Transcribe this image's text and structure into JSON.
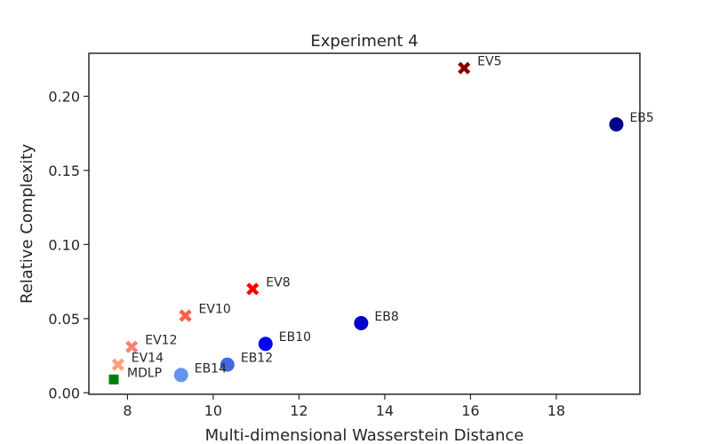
{
  "chart_data": {
    "type": "scatter",
    "title": "Experiment 4",
    "xlabel": "Multi-dimensional Wasserstein Distance",
    "ylabel": "Relative Complexity",
    "xlim": [
      7.1,
      19.95
    ],
    "ylim": [
      -0.001,
      0.229
    ],
    "xticks": [
      8,
      10,
      12,
      14,
      16,
      18
    ],
    "yticks": [
      0.0,
      0.05,
      0.1,
      0.15,
      0.2
    ],
    "ytick_labels": [
      "0.00",
      "0.05",
      "0.10",
      "0.15",
      "0.20"
    ],
    "grid": false,
    "points": [
      {
        "label": "EV5",
        "x": 15.85,
        "y": 0.219,
        "marker": "x",
        "color": "#8b0000"
      },
      {
        "label": "EB5",
        "x": 19.4,
        "y": 0.181,
        "marker": "circle",
        "color": "#00008b"
      },
      {
        "label": "EV8",
        "x": 10.92,
        "y": 0.07,
        "marker": "x",
        "color": "#ff0000"
      },
      {
        "label": "EB8",
        "x": 13.45,
        "y": 0.047,
        "marker": "circle",
        "color": "#0000cd"
      },
      {
        "label": "EV10",
        "x": 9.35,
        "y": 0.052,
        "marker": "x",
        "color": "#ff6347"
      },
      {
        "label": "EB10",
        "x": 11.22,
        "y": 0.033,
        "marker": "circle",
        "color": "#0000ff"
      },
      {
        "label": "EV12",
        "x": 8.1,
        "y": 0.031,
        "marker": "x",
        "color": "#fa8072"
      },
      {
        "label": "EB12",
        "x": 10.33,
        "y": 0.019,
        "marker": "circle",
        "color": "#4169e1"
      },
      {
        "label": "EV14",
        "x": 7.78,
        "y": 0.019,
        "marker": "x",
        "color": "#ffa07a"
      },
      {
        "label": "EB14",
        "x": 9.25,
        "y": 0.012,
        "marker": "circle",
        "color": "#6495ed"
      },
      {
        "label": "MDLP",
        "x": 7.68,
        "y": 0.009,
        "marker": "square",
        "color": "#008000"
      }
    ]
  }
}
